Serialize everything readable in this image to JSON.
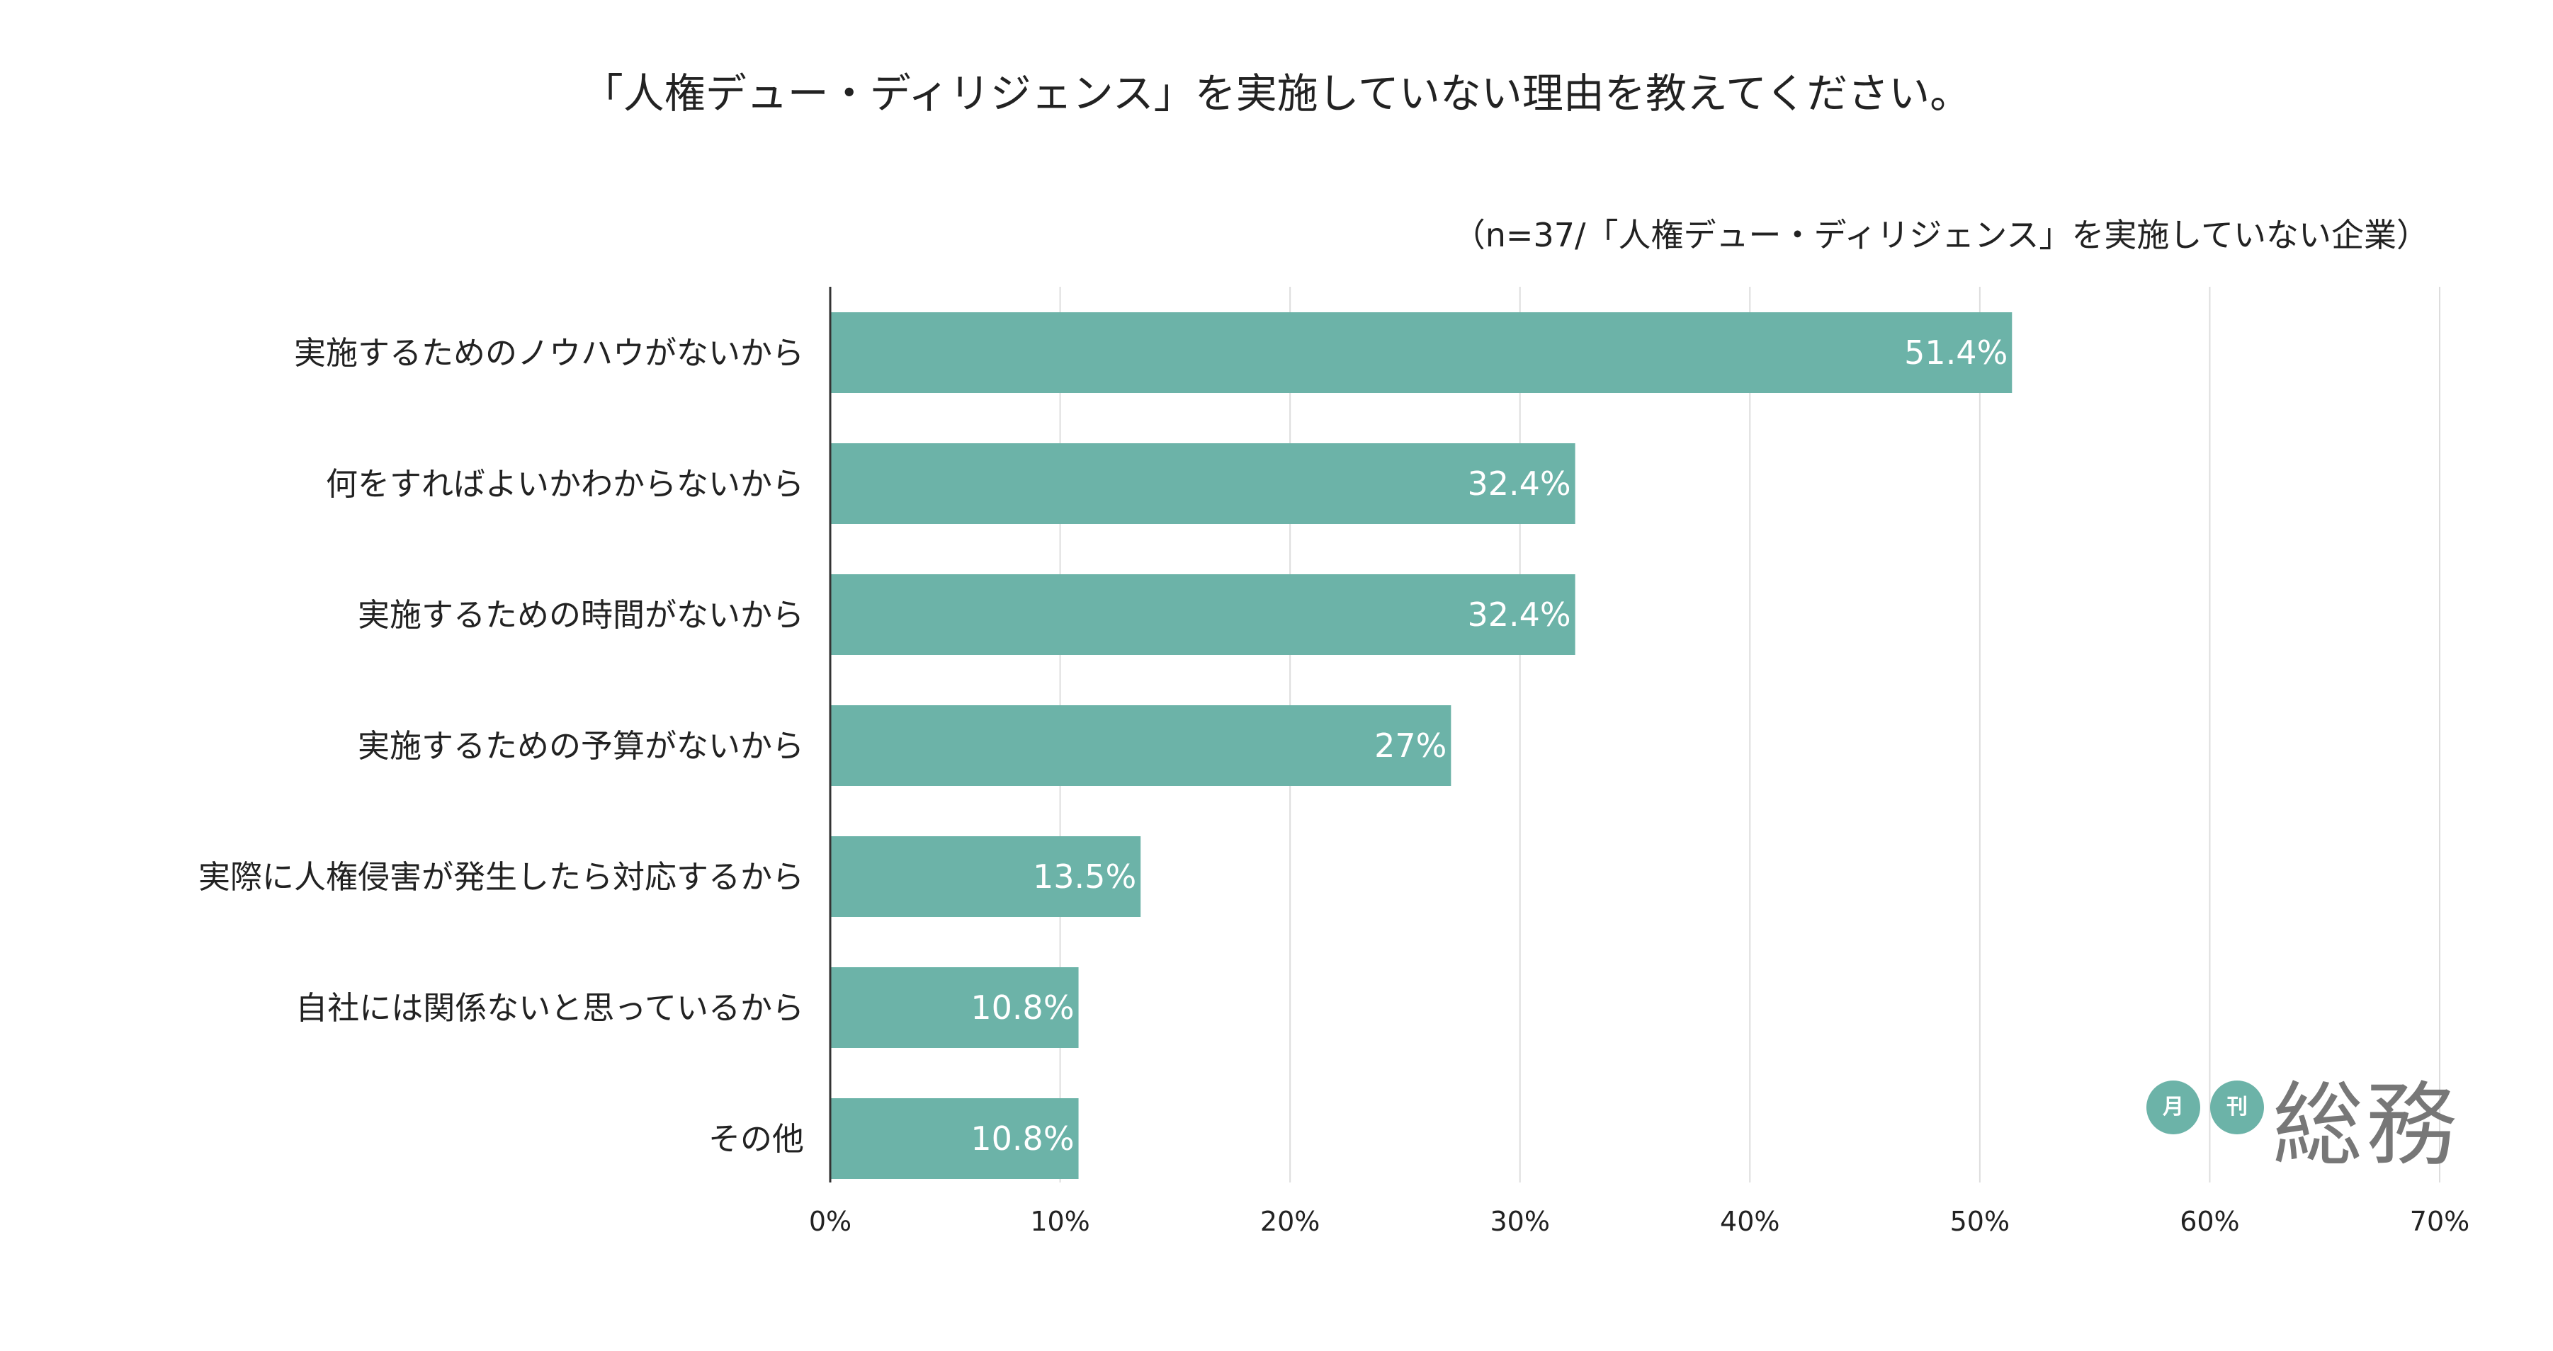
{
  "colors": {
    "bar": "#6cb3a8",
    "grid": "#dddddd",
    "axis": "#333333",
    "text": "#222222",
    "value_text": "#ffffff",
    "logo_badge": "#6cb3a8",
    "logo_text": "#777777"
  },
  "chart_data": {
    "type": "bar",
    "orientation": "horizontal",
    "title": "「人権デュー・ディリジェンス」を実施していない理由を教えてください。",
    "subtitle": "（n=37/「人権デュー・ディリジェンス」を実施していない企業）",
    "categories": [
      "実施するためのノウハウがないから",
      "何をすればよいかわからないから",
      "実施するための時間がないから",
      "実施するための予算がないから",
      "実際に人権侵害が発生したら対応するから",
      "自社には関係ないと思っているから",
      "その他"
    ],
    "values": [
      51.4,
      32.4,
      32.4,
      27,
      13.5,
      10.8,
      10.8
    ],
    "value_labels": [
      "51.4%",
      "32.4%",
      "32.4%",
      "27%",
      "13.5%",
      "10.8%",
      "10.8%"
    ],
    "xlim": [
      0,
      70
    ],
    "xticks": [
      0,
      10,
      20,
      30,
      40,
      50,
      60,
      70
    ],
    "xtick_labels": [
      "0%",
      "10%",
      "20%",
      "30%",
      "40%",
      "50%",
      "60%",
      "70%"
    ],
    "grid": true,
    "legend": "none"
  },
  "logo": {
    "badge1": "月",
    "badge2": "刊",
    "word": "総務"
  }
}
